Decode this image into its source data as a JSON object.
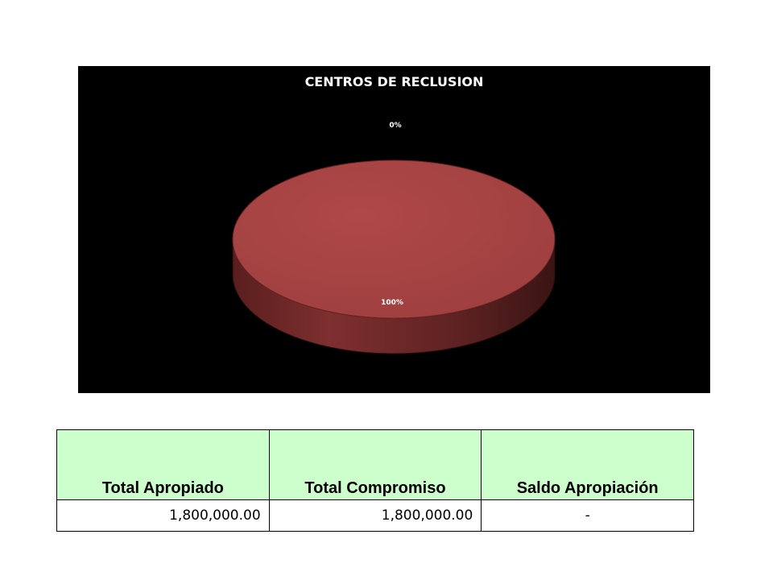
{
  "chart_data": {
    "type": "pie",
    "title": "CENTROS DE RECLUSION",
    "slices": [
      {
        "value": 100,
        "label": "100%",
        "color": "#a84444"
      },
      {
        "value": 0,
        "label": "0%",
        "color": "#4f81bd"
      }
    ],
    "background": "#000000"
  },
  "table": {
    "headers": [
      "Total Apropiado",
      "Total Compromiso",
      "Saldo Apropiación"
    ],
    "rows": [
      [
        "1,800,000.00",
        "1,800,000.00",
        "-"
      ]
    ],
    "header_color": "#ccffcc"
  }
}
